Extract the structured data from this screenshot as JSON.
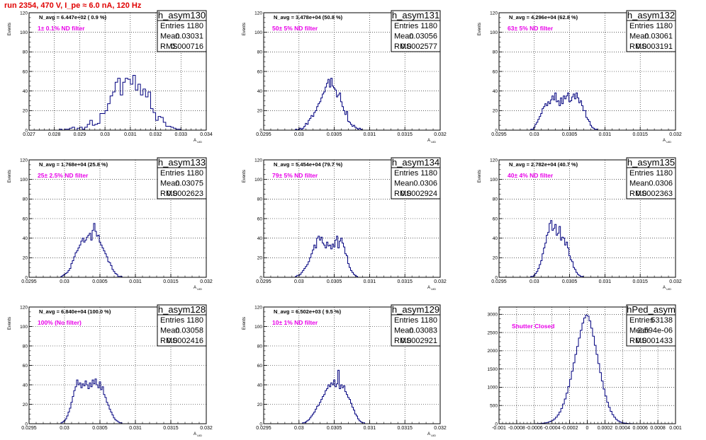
{
  "run_title": "run 2354,   470 V, I_pe ≈ 6.0 nA, 120 Hz",
  "colors": {
    "histogram_line": "#00007f",
    "annotation": "#e800e8",
    "title": "#e00000"
  },
  "chart_data": [
    {
      "type": "bar",
      "histogram_name": "h_asym130",
      "stats": {
        "entries_label": "Entries",
        "entries": "1180",
        "mean_label": "Mean",
        "mean": "0.03031",
        "rms_label": "RMS",
        "rms": "0.000716"
      },
      "header_text": "N_avg = 6.447e+02 ( 0.9 %)",
      "annotation": "1± 0.1% ND filter",
      "ylabel": "Events",
      "xlabel": "A_UID",
      "xlim": [
        0.027,
        0.034
      ],
      "ylim": [
        0,
        120
      ],
      "xticks": [
        "0.027",
        "0.028",
        "0.029",
        "0.03",
        "0.031",
        "0.032",
        "0.033",
        "0.034"
      ],
      "yticks": [
        "0",
        "20",
        "40",
        "60",
        "80",
        "100",
        "120"
      ],
      "bin_start": 0.0282,
      "bin_width": 0.0001,
      "values": [
        1,
        0,
        1,
        1,
        2,
        3,
        0,
        2,
        3,
        1,
        3,
        6,
        10,
        5,
        6,
        7,
        17,
        17,
        20,
        27,
        35,
        39,
        49,
        53,
        36,
        49,
        53,
        52,
        47,
        56,
        41,
        47,
        36,
        42,
        34,
        39,
        22,
        18,
        10,
        14,
        13,
        8,
        4,
        4,
        3,
        2,
        1,
        1
      ]
    },
    {
      "type": "bar",
      "histogram_name": "h_asym131",
      "stats": {
        "entries_label": "Entries",
        "entries": "1180",
        "mean_label": "Mean",
        "mean": "0.03056",
        "rms_label": "RMS",
        "rms": "0.0002577"
      },
      "header_text": "N_avg = 3.478e+04 (50.8 %)",
      "annotation": "50± 5% ND filter",
      "ylabel": "Events",
      "xlabel": "A_UID",
      "xlim": [
        0.0295,
        0.032
      ],
      "ylim": [
        0,
        120
      ],
      "xticks": [
        "0.0295",
        "0.03",
        "0.0305",
        "0.031",
        "0.0315",
        "0.032"
      ],
      "yticks": [
        "0",
        "20",
        "40",
        "60",
        "80",
        "100",
        "120"
      ],
      "bin_start": 0.02995,
      "bin_width": 2e-05,
      "values": [
        1,
        0,
        1,
        2,
        1,
        2,
        4,
        7,
        6,
        10,
        12,
        15,
        14,
        18,
        20,
        24,
        27,
        29,
        33,
        37,
        39,
        44,
        48,
        52,
        44,
        53,
        45,
        43,
        41,
        34,
        36,
        38,
        29,
        24,
        20,
        16,
        19,
        9,
        8,
        6,
        4,
        5,
        3,
        2,
        1,
        2,
        1,
        0
      ]
    },
    {
      "type": "bar",
      "histogram_name": "h_asym132",
      "stats": {
        "entries_label": "Entries",
        "entries": "1180",
        "mean_label": "Mean",
        "mean": "0.03061",
        "rms_label": "RMS",
        "rms": "0.0003191"
      },
      "header_text": "N_avg = 4.296e+04 (62.8 %)",
      "annotation": "63± 5% ND filter",
      "ylabel": "Events",
      "xlabel": "A_UID",
      "xlim": [
        0.0295,
        0.032
      ],
      "ylim": [
        0,
        120
      ],
      "xticks": [
        "0.0295",
        "0.03",
        "0.0305",
        "0.031",
        "0.0315",
        "0.032"
      ],
      "yticks": [
        "0",
        "20",
        "40",
        "60",
        "80",
        "100",
        "120"
      ],
      "bin_start": 0.02995,
      "bin_width": 2e-05,
      "values": [
        1,
        1,
        3,
        6,
        8,
        11,
        14,
        17,
        22,
        24,
        27,
        25,
        29,
        27,
        31,
        35,
        31,
        38,
        29,
        30,
        25,
        33,
        27,
        35,
        32,
        35,
        38,
        29,
        30,
        34,
        37,
        32,
        38,
        33,
        28,
        30,
        25,
        20,
        20,
        13,
        11,
        9,
        5,
        3,
        2,
        1,
        1,
        0
      ]
    },
    {
      "type": "bar",
      "histogram_name": "h_asym133",
      "stats": {
        "entries_label": "Entries",
        "entries": "1180",
        "mean_label": "Mean",
        "mean": "0.03075",
        "rms_label": "RMS",
        "rms": "0.0002623"
      },
      "header_text": "N_avg = 1.768e+04 (25.8 %)",
      "annotation": "25± 2.5% ND filter",
      "ylabel": "Events",
      "xlabel": "A_UID",
      "xlim": [
        0.0295,
        0.032
      ],
      "ylim": [
        0,
        120
      ],
      "xticks": [
        "0.0295",
        "0.03",
        "0.0305",
        "0.031",
        "0.0315",
        "0.032"
      ],
      "yticks": [
        "0",
        "20",
        "40",
        "60",
        "80",
        "100",
        "120"
      ],
      "bin_start": 0.02995,
      "bin_width": 2e-05,
      "values": [
        1,
        2,
        3,
        4,
        5,
        7,
        9,
        14,
        17,
        21,
        25,
        27,
        30,
        33,
        37,
        40,
        36,
        38,
        41,
        43,
        45,
        38,
        48,
        55,
        47,
        42,
        43,
        36,
        33,
        30,
        27,
        24,
        21,
        16,
        15,
        12,
        8,
        6,
        4,
        3,
        1,
        1,
        1,
        0,
        0,
        0,
        0,
        0
      ]
    },
    {
      "type": "bar",
      "histogram_name": "h_asym134",
      "stats": {
        "entries_label": "Entries",
        "entries": "1180",
        "mean_label": "Mean",
        "mean": "0.0306",
        "rms_label": "RMS",
        "rms": "0.0002924"
      },
      "header_text": "N_avg = 5.454e+04 (79.7 %)",
      "annotation": "79± 5% ND filter",
      "ylabel": "Events",
      "xlabel": "A_UID",
      "xlim": [
        0.0295,
        0.032
      ],
      "ylim": [
        0,
        120
      ],
      "xticks": [
        "0.0295",
        "0.03",
        "0.0305",
        "0.031",
        "0.0315",
        "0.032"
      ],
      "yticks": [
        "0",
        "20",
        "40",
        "60",
        "80",
        "100",
        "120"
      ],
      "bin_start": 0.02995,
      "bin_width": 2e-05,
      "values": [
        1,
        2,
        2,
        3,
        5,
        7,
        9,
        11,
        13,
        16,
        20,
        24,
        28,
        33,
        30,
        40,
        42,
        38,
        41,
        35,
        33,
        30,
        36,
        32,
        33,
        29,
        34,
        31,
        38,
        42,
        30,
        37,
        40,
        35,
        31,
        24,
        22,
        14,
        10,
        7,
        5,
        3,
        2,
        1,
        0,
        0,
        0,
        0
      ]
    },
    {
      "type": "bar",
      "histogram_name": "h_asym135",
      "stats": {
        "entries_label": "Entries",
        "entries": "1180",
        "mean_label": "Mean",
        "mean": "0.0306",
        "rms_label": "RMS",
        "rms": "0.0002363"
      },
      "header_text": "N_avg = 2.782e+04 (40.7 %)",
      "annotation": "40± 4% ND filter",
      "ylabel": "Events",
      "xlabel": "A_UID",
      "xlim": [
        0.0295,
        0.032
      ],
      "ylim": [
        0,
        120
      ],
      "xticks": [
        "0.0295",
        "0.03",
        "0.0305",
        "0.031",
        "0.0315",
        "0.032"
      ],
      "yticks": [
        "0",
        "20",
        "40",
        "60",
        "80",
        "100",
        "120"
      ],
      "bin_start": 0.02995,
      "bin_width": 2e-05,
      "values": [
        1,
        1,
        2,
        4,
        6,
        9,
        13,
        17,
        24,
        30,
        35,
        43,
        46,
        55,
        58,
        48,
        50,
        54,
        43,
        45,
        52,
        38,
        41,
        40,
        33,
        36,
        30,
        22,
        18,
        16,
        10,
        8,
        5,
        3,
        2,
        1,
        1,
        0,
        0,
        0,
        0,
        0,
        0,
        0,
        0,
        0,
        0,
        0
      ]
    },
    {
      "type": "bar",
      "histogram_name": "h_asym128",
      "stats": {
        "entries_label": "Entries",
        "entries": "1180",
        "mean_label": "Mean",
        "mean": "0.03058",
        "rms_label": "RMS",
        "rms": "0.0002416"
      },
      "header_text": "N_avg = 6.840e+04 (100.0 %)",
      "annotation": "100% (No filter)",
      "ylabel": "Events",
      "xlabel": "A_UID",
      "xlim": [
        0.0295,
        0.032
      ],
      "ylim": [
        0,
        120
      ],
      "xticks": [
        "0.0295",
        "0.03",
        "0.0305",
        "0.031",
        "0.0315",
        "0.032"
      ],
      "yticks": [
        "0",
        "20",
        "40",
        "60",
        "80",
        "100",
        "120"
      ],
      "bin_start": 0.02995,
      "bin_width": 2e-05,
      "values": [
        1,
        2,
        3,
        5,
        8,
        12,
        16,
        22,
        28,
        34,
        38,
        45,
        40,
        42,
        37,
        41,
        39,
        44,
        40,
        36,
        42,
        38,
        45,
        41,
        46,
        40,
        37,
        43,
        35,
        38,
        30,
        27,
        22,
        19,
        15,
        12,
        9,
        6,
        4,
        3,
        2,
        1,
        1,
        0,
        0,
        0,
        0,
        0
      ]
    },
    {
      "type": "bar",
      "histogram_name": "h_asym129",
      "stats": {
        "entries_label": "Entries",
        "entries": "1180",
        "mean_label": "Mean",
        "mean": "0.03083",
        "rms_label": "RMS",
        "rms": "0.0002921"
      },
      "header_text": "N_avg = 6.502e+03 ( 9.5 %)",
      "annotation": "10± 1% ND filter",
      "ylabel": "Events",
      "xlabel": "A_UID",
      "xlim": [
        0.0295,
        0.032
      ],
      "ylim": [
        0,
        120
      ],
      "xticks": [
        "0.0295",
        "0.03",
        "0.0305",
        "0.031",
        "0.0315",
        "0.032"
      ],
      "yticks": [
        "0",
        "20",
        "40",
        "60",
        "80",
        "100",
        "120"
      ],
      "bin_start": 0.03005,
      "bin_width": 2e-05,
      "values": [
        1,
        1,
        2,
        3,
        4,
        6,
        8,
        10,
        12,
        15,
        18,
        19,
        22,
        25,
        28,
        30,
        34,
        36,
        40,
        38,
        42,
        40,
        45,
        38,
        41,
        55,
        36,
        40,
        37,
        39,
        33,
        30,
        27,
        25,
        21,
        17,
        14,
        10,
        8,
        5,
        3,
        2,
        1,
        1,
        0,
        0,
        0,
        0
      ]
    },
    {
      "type": "bar",
      "histogram_name": "hPed_asym",
      "stats": {
        "entries_label": "Entries",
        "entries": "53138",
        "mean_label": "Mean",
        "mean": "2.594e-06",
        "rms_label": "RMS",
        "rms": "0.0001433"
      },
      "header_text": "",
      "annotation": "Shutter Closed",
      "ylabel": "",
      "xlabel": "",
      "xlim": [
        -0.001,
        0.001
      ],
      "ylim": [
        0,
        3200
      ],
      "xticks": [
        "-0.001",
        "-0.0008",
        "-0.0006",
        "-0.0004",
        "-0.0002",
        "0",
        "0.0002",
        "0.0004",
        "0.0006",
        "0.0008",
        "0.001"
      ],
      "yticks": [
        "0",
        "500",
        "1000",
        "1500",
        "2000",
        "2500",
        "3000"
      ],
      "bin_start": -0.0006,
      "bin_width": 2e-05,
      "values": [
        2,
        3,
        5,
        8,
        12,
        18,
        25,
        35,
        50,
        70,
        95,
        130,
        180,
        240,
        320,
        420,
        540,
        680,
        840,
        1020,
        1220,
        1440,
        1670,
        1900,
        2120,
        2350,
        2560,
        2760,
        2900,
        2980,
        2950,
        2820,
        2620,
        2400,
        2150,
        1900,
        1650,
        1400,
        1170,
        950,
        760,
        590,
        450,
        340,
        250,
        180,
        120,
        80,
        55,
        35,
        22,
        14,
        9,
        6,
        4,
        2,
        1,
        1,
        0,
        0
      ]
    }
  ]
}
